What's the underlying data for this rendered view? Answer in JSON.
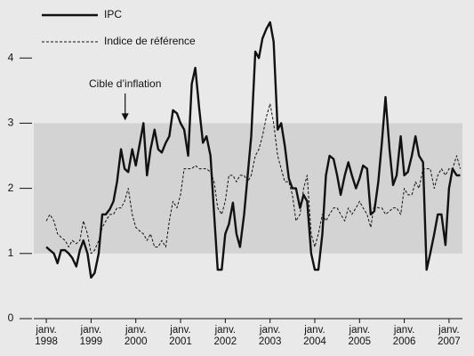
{
  "chart_data": {
    "type": "line",
    "x": [
      1998,
      1998.08,
      1998.17,
      1998.25,
      1998.33,
      1998.42,
      1998.5,
      1998.58,
      1998.67,
      1998.75,
      1998.83,
      1998.92,
      1999,
      1999.08,
      1999.17,
      1999.25,
      1999.33,
      1999.42,
      1999.5,
      1999.58,
      1999.67,
      1999.75,
      1999.83,
      1999.92,
      2000,
      2000.08,
      2000.17,
      2000.25,
      2000.33,
      2000.42,
      2000.5,
      2000.58,
      2000.67,
      2000.75,
      2000.83,
      2000.92,
      2001,
      2001.08,
      2001.17,
      2001.25,
      2001.33,
      2001.42,
      2001.5,
      2001.58,
      2001.67,
      2001.75,
      2001.83,
      2001.92,
      2002,
      2002.08,
      2002.17,
      2002.25,
      2002.33,
      2002.42,
      2002.5,
      2002.58,
      2002.67,
      2002.75,
      2002.83,
      2002.92,
      2003,
      2003.08,
      2003.17,
      2003.25,
      2003.33,
      2003.42,
      2003.5,
      2003.58,
      2003.67,
      2003.75,
      2003.83,
      2003.92,
      2004,
      2004.08,
      2004.17,
      2004.25,
      2004.33,
      2004.42,
      2004.5,
      2004.58,
      2004.67,
      2004.75,
      2004.83,
      2004.92,
      2005,
      2005.08,
      2005.17,
      2005.25,
      2005.33,
      2005.42,
      2005.5,
      2005.58,
      2005.67,
      2005.75,
      2005.83,
      2005.92,
      2006,
      2006.08,
      2006.17,
      2006.25,
      2006.33,
      2006.42,
      2006.5,
      2006.58,
      2006.67,
      2006.75,
      2006.83,
      2006.92,
      2007,
      2007.08,
      2007.17,
      2007.25
    ],
    "series": [
      {
        "name": "IPC",
        "color": "#111111",
        "dash": false,
        "values": [
          1.1,
          1.05,
          1.0,
          0.85,
          1.05,
          1.05,
          1.0,
          0.93,
          0.8,
          1.05,
          1.2,
          1.0,
          0.63,
          0.7,
          1.0,
          1.6,
          1.6,
          1.68,
          1.8,
          2.1,
          2.6,
          2.3,
          2.25,
          2.6,
          2.35,
          2.65,
          3.0,
          2.2,
          2.6,
          2.9,
          2.6,
          2.55,
          2.7,
          2.8,
          3.2,
          3.15,
          3.0,
          2.9,
          2.5,
          3.6,
          3.85,
          3.2,
          2.7,
          2.8,
          2.5,
          1.6,
          0.75,
          0.75,
          1.3,
          1.45,
          1.78,
          1.3,
          1.1,
          1.6,
          2.2,
          2.8,
          4.1,
          4.0,
          4.3,
          4.45,
          4.55,
          4.25,
          2.9,
          3.0,
          2.65,
          2.15,
          2.0,
          2.0,
          1.7,
          1.9,
          1.8,
          1.0,
          0.75,
          0.75,
          1.3,
          2.2,
          2.5,
          2.45,
          2.2,
          1.9,
          2.2,
          2.4,
          2.2,
          2.0,
          2.15,
          2.35,
          2.3,
          1.6,
          1.65,
          2.1,
          2.7,
          3.4,
          2.6,
          2.05,
          2.2,
          2.8,
          2.2,
          2.25,
          2.5,
          2.8,
          2.5,
          2.4,
          0.75,
          1.0,
          1.3,
          1.6,
          1.6,
          1.13,
          2.0,
          2.3,
          2.2,
          2.2
        ]
      },
      {
        "name": "Indice de référence",
        "color": "#111111",
        "dash": true,
        "values": [
          1.5,
          1.6,
          1.5,
          1.3,
          1.25,
          1.2,
          1.1,
          1.2,
          1.15,
          1.2,
          1.5,
          1.3,
          1.0,
          1.05,
          1.2,
          1.4,
          1.5,
          1.6,
          1.6,
          1.7,
          1.7,
          1.8,
          2.0,
          1.6,
          1.4,
          1.35,
          1.3,
          1.2,
          1.3,
          1.1,
          1.1,
          1.2,
          1.1,
          1.5,
          1.8,
          1.7,
          1.9,
          2.3,
          2.3,
          2.3,
          2.35,
          2.3,
          2.3,
          2.3,
          2.25,
          2.1,
          1.7,
          1.6,
          1.8,
          2.2,
          2.2,
          2.1,
          2.2,
          2.2,
          2.1,
          2.2,
          2.5,
          2.6,
          2.8,
          3.1,
          3.3,
          3.0,
          2.5,
          2.3,
          2.1,
          2.1,
          1.9,
          1.5,
          1.6,
          2.0,
          2.2,
          1.3,
          1.1,
          1.3,
          1.6,
          1.5,
          1.6,
          1.7,
          1.7,
          1.6,
          1.5,
          1.7,
          1.6,
          1.7,
          1.8,
          1.7,
          1.6,
          1.4,
          1.75,
          1.7,
          1.7,
          1.6,
          1.65,
          1.7,
          1.7,
          1.6,
          2.0,
          1.9,
          1.9,
          2.1,
          2.0,
          2.3,
          2.3,
          2.3,
          2.0,
          2.2,
          2.3,
          2.2,
          2.3,
          2.3,
          2.5,
          2.3
        ]
      }
    ],
    "target_band": [
      1,
      3
    ],
    "band_color": "#d3d3d3",
    "annotation": {
      "text": "Cible d’inflation",
      "x": 2000,
      "y": 3
    },
    "xlim": [
      1997.72,
      2007.3
    ],
    "ylim": [
      0,
      4.85
    ],
    "xticks": [
      {
        "value": 1998,
        "label": "janv. 1998"
      },
      {
        "value": 1999,
        "label": "janv. 1999"
      },
      {
        "value": 2000,
        "label": "janv. 2000"
      },
      {
        "value": 2001,
        "label": "janv. 2001"
      },
      {
        "value": 2002,
        "label": "janv. 2002"
      },
      {
        "value": 2003,
        "label": "janv. 2003"
      },
      {
        "value": 2004,
        "label": "janv. 2004"
      },
      {
        "value": 2005,
        "label": "janv. 2005"
      },
      {
        "value": 2006,
        "label": "janv. 2006"
      },
      {
        "value": 2007,
        "label": "janv. 2007"
      }
    ],
    "yticks": [
      0,
      1,
      2,
      3,
      4
    ],
    "legend": "top-left"
  }
}
